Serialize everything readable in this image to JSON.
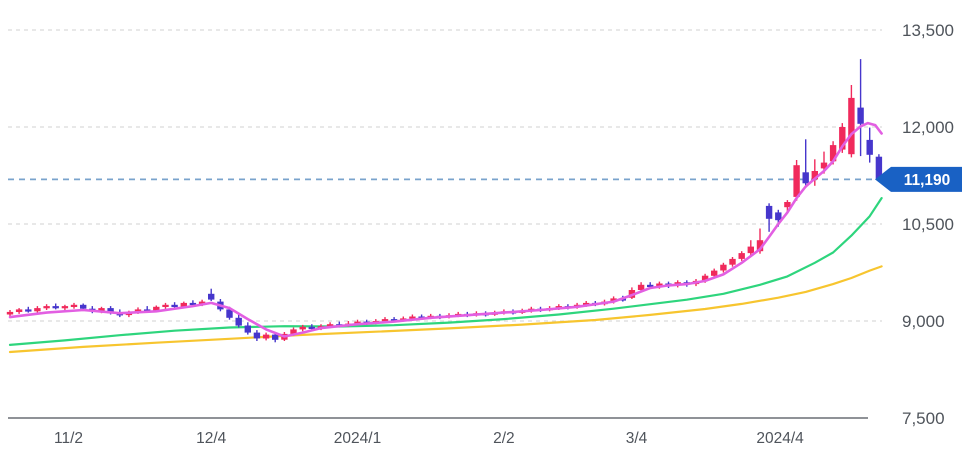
{
  "chart_data": {
    "type": "candlestick",
    "title": "",
    "y_axis": {
      "min": 7500,
      "max": 13500,
      "ticks": [
        13500,
        12000,
        10500,
        9000,
        7500
      ],
      "labels": [
        "13,500",
        "12,000",
        "10,500",
        "9,000",
        "7,500"
      ],
      "grid": "dashed"
    },
    "x_axis": {
      "ticks": [
        {
          "index": 6.4,
          "label": "11/2"
        },
        {
          "index": 22,
          "label": "12/4"
        },
        {
          "index": 38,
          "label": "2024/1"
        },
        {
          "index": 54,
          "label": "2/2"
        },
        {
          "index": 68.5,
          "label": "3/4"
        },
        {
          "index": 84.2,
          "label": "2024/4"
        }
      ]
    },
    "current_price": {
      "value": 11190,
      "label": "11,190"
    },
    "candles": [
      [
        9100,
        9170,
        9060,
        9140
      ],
      [
        9140,
        9200,
        9110,
        9180
      ],
      [
        9180,
        9220,
        9130,
        9150
      ],
      [
        9150,
        9230,
        9130,
        9200
      ],
      [
        9200,
        9260,
        9170,
        9230
      ],
      [
        9230,
        9270,
        9180,
        9200
      ],
      [
        9200,
        9250,
        9160,
        9230
      ],
      [
        9230,
        9280,
        9190,
        9250
      ],
      [
        9250,
        9270,
        9170,
        9190
      ],
      [
        9190,
        9230,
        9120,
        9150
      ],
      [
        9150,
        9220,
        9120,
        9200
      ],
      [
        9200,
        9230,
        9100,
        9120
      ],
      [
        9120,
        9180,
        9060,
        9090
      ],
      [
        9090,
        9160,
        9060,
        9140
      ],
      [
        9140,
        9210,
        9110,
        9180
      ],
      [
        9180,
        9230,
        9130,
        9160
      ],
      [
        9160,
        9240,
        9140,
        9220
      ],
      [
        9220,
        9280,
        9180,
        9250
      ],
      [
        9250,
        9290,
        9190,
        9220
      ],
      [
        9220,
        9300,
        9200,
        9280
      ],
      [
        9280,
        9320,
        9230,
        9260
      ],
      [
        9260,
        9330,
        9230,
        9300
      ],
      [
        9420,
        9500,
        9310,
        9330
      ],
      [
        9300,
        9340,
        9150,
        9180
      ],
      [
        9180,
        9220,
        9020,
        9050
      ],
      [
        9050,
        9100,
        8900,
        8930
      ],
      [
        8930,
        8980,
        8790,
        8820
      ],
      [
        8820,
        8860,
        8690,
        8730
      ],
      [
        8730,
        8820,
        8700,
        8790
      ],
      [
        8790,
        8810,
        8670,
        8710
      ],
      [
        8710,
        8830,
        8690,
        8800
      ],
      [
        8800,
        8900,
        8770,
        8870
      ],
      [
        8870,
        8940,
        8840,
        8910
      ],
      [
        8910,
        8950,
        8850,
        8880
      ],
      [
        8880,
        8950,
        8860,
        8920
      ],
      [
        8920,
        8980,
        8890,
        8950
      ],
      [
        8950,
        8990,
        8900,
        8930
      ],
      [
        8930,
        9000,
        8910,
        8960
      ],
      [
        8960,
        9020,
        8930,
        8990
      ],
      [
        8990,
        9020,
        8940,
        8970
      ],
      [
        8970,
        9030,
        8950,
        9000
      ],
      [
        9000,
        9060,
        8980,
        9030
      ],
      [
        9030,
        9060,
        8980,
        9010
      ],
      [
        9010,
        9070,
        8990,
        9040
      ],
      [
        9040,
        9100,
        9020,
        9070
      ],
      [
        9070,
        9100,
        9020,
        9050
      ],
      [
        9050,
        9110,
        9030,
        9080
      ],
      [
        9080,
        9110,
        9030,
        9060
      ],
      [
        9060,
        9120,
        9040,
        9090
      ],
      [
        9090,
        9140,
        9060,
        9110
      ],
      [
        9110,
        9140,
        9060,
        9090
      ],
      [
        9090,
        9150,
        9070,
        9120
      ],
      [
        9120,
        9150,
        9070,
        9100
      ],
      [
        9100,
        9160,
        9080,
        9130
      ],
      [
        9130,
        9180,
        9100,
        9150
      ],
      [
        9150,
        9180,
        9100,
        9130
      ],
      [
        9130,
        9190,
        9110,
        9160
      ],
      [
        9160,
        9220,
        9130,
        9190
      ],
      [
        9190,
        9220,
        9140,
        9170
      ],
      [
        9170,
        9230,
        9150,
        9200
      ],
      [
        9200,
        9260,
        9170,
        9230
      ],
      [
        9230,
        9260,
        9180,
        9210
      ],
      [
        9210,
        9280,
        9190,
        9250
      ],
      [
        9250,
        9310,
        9220,
        9280
      ],
      [
        9280,
        9310,
        9230,
        9260
      ],
      [
        9260,
        9330,
        9240,
        9300
      ],
      [
        9300,
        9380,
        9270,
        9350
      ],
      [
        9350,
        9390,
        9300,
        9330
      ],
      [
        9360,
        9520,
        9340,
        9480
      ],
      [
        9480,
        9600,
        9450,
        9560
      ],
      [
        9560,
        9600,
        9500,
        9530
      ],
      [
        9530,
        9610,
        9500,
        9580
      ],
      [
        9580,
        9610,
        9510,
        9550
      ],
      [
        9550,
        9630,
        9520,
        9600
      ],
      [
        9600,
        9630,
        9530,
        9570
      ],
      [
        9570,
        9650,
        9540,
        9620
      ],
      [
        9620,
        9730,
        9590,
        9700
      ],
      [
        9700,
        9810,
        9670,
        9780
      ],
      [
        9780,
        9900,
        9750,
        9870
      ],
      [
        9870,
        9990,
        9840,
        9960
      ],
      [
        9960,
        10080,
        9930,
        10050
      ],
      [
        10050,
        10250,
        10020,
        10150
      ],
      [
        10080,
        10430,
        10040,
        10250
      ],
      [
        10780,
        10820,
        10380,
        10580
      ],
      [
        10680,
        10720,
        10460,
        10560
      ],
      [
        10760,
        10870,
        10680,
        10840
      ],
      [
        10920,
        11490,
        10860,
        11410
      ],
      [
        11300,
        11810,
        11060,
        11130
      ],
      [
        11190,
        11500,
        11090,
        11320
      ],
      [
        11360,
        11620,
        11280,
        11450
      ],
      [
        11470,
        11780,
        11420,
        11720
      ],
      [
        11650,
        12060,
        11600,
        12000
      ],
      [
        11580,
        12650,
        11530,
        12450
      ],
      [
        12300,
        13050,
        11550,
        12050
      ],
      [
        11800,
        11990,
        11450,
        11570
      ],
      [
        11540,
        11580,
        11160,
        11190
      ]
    ],
    "series": [
      {
        "name": "ma-short",
        "color": "#e25fe2",
        "points": [
          [
            0,
            9060
          ],
          [
            4,
            9130
          ],
          [
            8,
            9170
          ],
          [
            12,
            9120
          ],
          [
            16,
            9150
          ],
          [
            20,
            9230
          ],
          [
            22,
            9280
          ],
          [
            24,
            9200
          ],
          [
            26,
            9030
          ],
          [
            28,
            8870
          ],
          [
            30,
            8760
          ],
          [
            32,
            8820
          ],
          [
            34,
            8890
          ],
          [
            38,
            8950
          ],
          [
            42,
            8990
          ],
          [
            46,
            9050
          ],
          [
            50,
            9090
          ],
          [
            54,
            9130
          ],
          [
            58,
            9170
          ],
          [
            62,
            9220
          ],
          [
            66,
            9300
          ],
          [
            68,
            9400
          ],
          [
            70,
            9510
          ],
          [
            72,
            9550
          ],
          [
            74,
            9570
          ],
          [
            76,
            9620
          ],
          [
            78,
            9720
          ],
          [
            80,
            9900
          ],
          [
            82,
            10110
          ],
          [
            83,
            10300
          ],
          [
            84,
            10500
          ],
          [
            85,
            10680
          ],
          [
            86,
            10900
          ],
          [
            87,
            11080
          ],
          [
            88,
            11200
          ],
          [
            89,
            11320
          ],
          [
            90,
            11470
          ],
          [
            91,
            11700
          ],
          [
            92,
            11890
          ],
          [
            93,
            12010
          ],
          [
            93.8,
            12060
          ],
          [
            94.6,
            12030
          ],
          [
            95.3,
            11900
          ]
        ]
      },
      {
        "name": "ma-mid",
        "color": "#2ed57d",
        "points": [
          [
            0,
            8630
          ],
          [
            6,
            8700
          ],
          [
            12,
            8780
          ],
          [
            18,
            8850
          ],
          [
            24,
            8900
          ],
          [
            30,
            8920
          ],
          [
            36,
            8915
          ],
          [
            42,
            8935
          ],
          [
            48,
            8975
          ],
          [
            54,
            9030
          ],
          [
            60,
            9100
          ],
          [
            66,
            9190
          ],
          [
            70,
            9260
          ],
          [
            74,
            9330
          ],
          [
            78,
            9420
          ],
          [
            82,
            9560
          ],
          [
            85,
            9690
          ],
          [
            88,
            9900
          ],
          [
            90,
            10060
          ],
          [
            92,
            10320
          ],
          [
            94,
            10620
          ],
          [
            95.3,
            10900
          ]
        ]
      },
      {
        "name": "ma-long",
        "color": "#f7c52f",
        "points": [
          [
            0,
            8520
          ],
          [
            8,
            8600
          ],
          [
            16,
            8665
          ],
          [
            24,
            8725
          ],
          [
            32,
            8785
          ],
          [
            40,
            8835
          ],
          [
            48,
            8885
          ],
          [
            56,
            8945
          ],
          [
            64,
            9015
          ],
          [
            70,
            9095
          ],
          [
            76,
            9185
          ],
          [
            80,
            9265
          ],
          [
            84,
            9360
          ],
          [
            87,
            9450
          ],
          [
            90,
            9570
          ],
          [
            92,
            9665
          ],
          [
            94,
            9780
          ],
          [
            95.3,
            9845
          ]
        ]
      }
    ],
    "colors": {
      "up": "#f02a5c",
      "down": "#4636cc",
      "grid": "#d9d9d9",
      "axis": "#6a6f75",
      "label": "#4f545b",
      "price_line": "#79a3cc",
      "badge": "#1961c4",
      "badge_text": "#ffffff"
    }
  }
}
